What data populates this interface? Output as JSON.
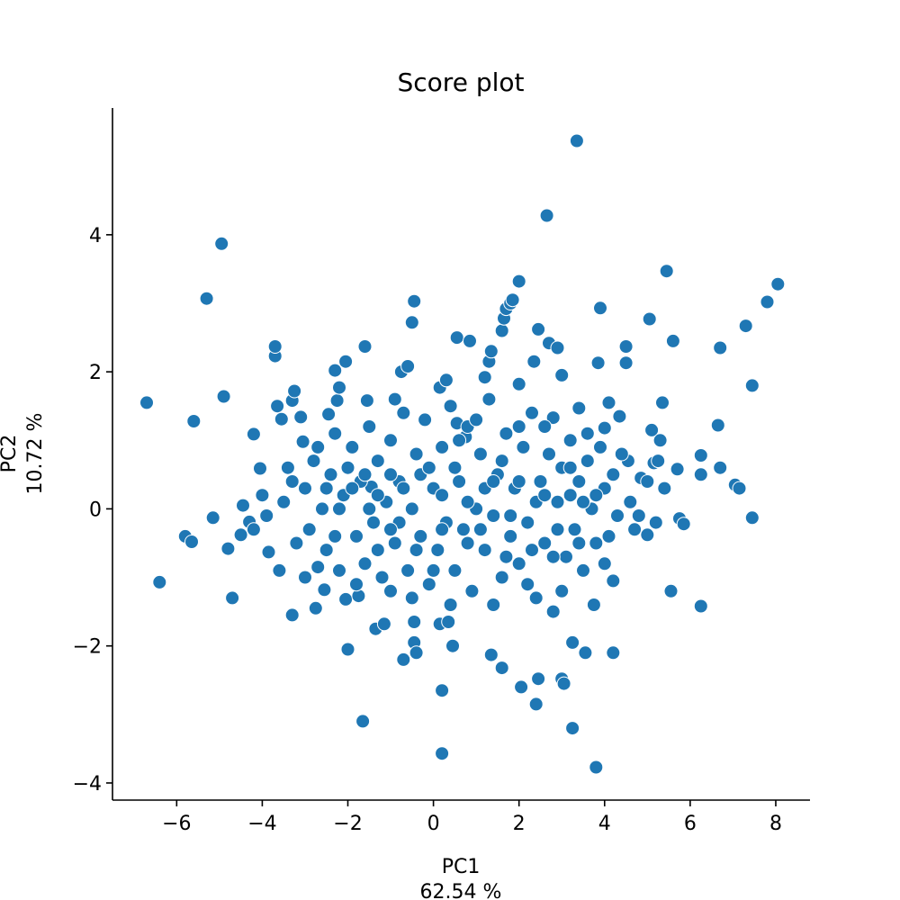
{
  "chart_data": {
    "type": "scatter",
    "title": "Score plot",
    "xlabel": "PC1",
    "xlabel_sub": "62.54 %",
    "ylabel": "PC2",
    "ylabel_sub": "10.72 %",
    "xlim": [
      -7.5,
      8.8
    ],
    "ylim": [
      -4.25,
      5.85
    ],
    "xticks": [
      -6,
      -4,
      -2,
      0,
      2,
      4,
      6,
      8
    ],
    "yticks": [
      -4,
      -2,
      0,
      2,
      4
    ],
    "grid": false,
    "marker_color": "#1f77b4",
    "marker_edge": "#ffffff",
    "points": [
      [
        -6.7,
        1.55
      ],
      [
        -6.4,
        -1.07
      ],
      [
        -5.8,
        -0.4
      ],
      [
        -5.65,
        -0.48
      ],
      [
        -5.6,
        1.28
      ],
      [
        -5.3,
        3.07
      ],
      [
        -5.15,
        -0.13
      ],
      [
        -4.95,
        3.87
      ],
      [
        -4.9,
        1.64
      ],
      [
        -4.8,
        -0.58
      ],
      [
        -4.7,
        -1.3
      ],
      [
        -4.5,
        -0.38
      ],
      [
        -4.45,
        0.05
      ],
      [
        -4.3,
        -0.19
      ],
      [
        -4.2,
        1.09
      ],
      [
        -4.2,
        -0.3
      ],
      [
        -4.05,
        0.59
      ],
      [
        -4.0,
        0.2
      ],
      [
        -3.85,
        -0.63
      ],
      [
        -3.7,
        2.23
      ],
      [
        -3.7,
        2.37
      ],
      [
        -3.65,
        1.5
      ],
      [
        -3.55,
        1.31
      ],
      [
        -3.3,
        1.58
      ],
      [
        -3.25,
        1.72
      ],
      [
        -3.3,
        -1.55
      ],
      [
        -3.05,
        0.98
      ],
      [
        -3.1,
        1.34
      ],
      [
        -2.75,
        -1.45
      ],
      [
        -2.7,
        -0.85
      ],
      [
        -2.55,
        -1.18
      ],
      [
        -2.45,
        1.38
      ],
      [
        -2.3,
        2.02
      ],
      [
        -2.25,
        1.58
      ],
      [
        -2.2,
        1.77
      ],
      [
        -2.05,
        2.15
      ],
      [
        -2.05,
        -1.32
      ],
      [
        -2.0,
        -2.05
      ],
      [
        -1.75,
        -1.27
      ],
      [
        -1.65,
        -3.1
      ],
      [
        -1.6,
        2.37
      ],
      [
        -1.55,
        1.58
      ],
      [
        -1.45,
        0.32
      ],
      [
        -1.35,
        -1.75
      ],
      [
        -1.15,
        -1.68
      ],
      [
        -1.0,
        -1.2
      ],
      [
        -0.9,
        1.6
      ],
      [
        -0.75,
        2.0
      ],
      [
        -0.7,
        -2.2
      ],
      [
        -0.6,
        2.08
      ],
      [
        -0.5,
        2.72
      ],
      [
        -0.45,
        3.03
      ],
      [
        -0.45,
        -1.65
      ],
      [
        -0.45,
        -1.95
      ],
      [
        -0.4,
        -2.1
      ],
      [
        0.15,
        1.77
      ],
      [
        0.15,
        -1.68
      ],
      [
        0.2,
        -2.65
      ],
      [
        0.2,
        -3.57
      ],
      [
        0.3,
        1.88
      ],
      [
        0.35,
        -1.65
      ],
      [
        0.45,
        -2.0
      ],
      [
        0.55,
        2.5
      ],
      [
        0.55,
        1.25
      ],
      [
        0.85,
        2.45
      ],
      [
        0.75,
        1.05
      ],
      [
        1.2,
        1.92
      ],
      [
        1.3,
        2.15
      ],
      [
        1.35,
        2.3
      ],
      [
        1.35,
        -2.13
      ],
      [
        1.6,
        -2.32
      ],
      [
        1.6,
        2.6
      ],
      [
        1.65,
        2.78
      ],
      [
        1.7,
        2.92
      ],
      [
        1.8,
        3.0
      ],
      [
        1.85,
        3.05
      ],
      [
        2.0,
        3.32
      ],
      [
        2.0,
        1.82
      ],
      [
        2.05,
        -2.6
      ],
      [
        2.35,
        2.15
      ],
      [
        2.4,
        -2.85
      ],
      [
        2.45,
        -2.48
      ],
      [
        2.45,
        2.62
      ],
      [
        2.65,
        4.28
      ],
      [
        2.7,
        2.42
      ],
      [
        2.8,
        1.33
      ],
      [
        2.9,
        2.35
      ],
      [
        3.0,
        1.95
      ],
      [
        3.0,
        -2.48
      ],
      [
        3.05,
        -2.55
      ],
      [
        3.25,
        -3.2
      ],
      [
        3.25,
        -1.95
      ],
      [
        3.35,
        5.37
      ],
      [
        3.4,
        1.47
      ],
      [
        3.55,
        -2.1
      ],
      [
        3.75,
        -1.4
      ],
      [
        3.8,
        -3.77
      ],
      [
        3.85,
        2.13
      ],
      [
        3.9,
        2.93
      ],
      [
        4.0,
        1.18
      ],
      [
        4.1,
        1.55
      ],
      [
        4.2,
        -1.05
      ],
      [
        4.2,
        -2.1
      ],
      [
        4.35,
        1.35
      ],
      [
        4.5,
        2.37
      ],
      [
        4.5,
        2.13
      ],
      [
        4.55,
        0.7
      ],
      [
        4.8,
        -0.1
      ],
      [
        4.85,
        0.45
      ],
      [
        5.0,
        -0.38
      ],
      [
        5.05,
        2.77
      ],
      [
        5.1,
        1.15
      ],
      [
        5.15,
        0.67
      ],
      [
        5.25,
        0.7
      ],
      [
        5.3,
        1.0
      ],
      [
        5.35,
        1.55
      ],
      [
        5.45,
        3.47
      ],
      [
        5.55,
        -1.2
      ],
      [
        5.6,
        2.45
      ],
      [
        5.7,
        0.58
      ],
      [
        5.75,
        -0.14
      ],
      [
        5.85,
        -0.22
      ],
      [
        6.25,
        0.5
      ],
      [
        6.25,
        0.78
      ],
      [
        6.25,
        -1.42
      ],
      [
        6.65,
        1.22
      ],
      [
        6.7,
        0.6
      ],
      [
        6.7,
        2.35
      ],
      [
        7.05,
        0.35
      ],
      [
        7.15,
        0.3
      ],
      [
        7.3,
        2.67
      ],
      [
        7.45,
        1.8
      ],
      [
        7.45,
        -0.13
      ],
      [
        7.8,
        3.02
      ],
      [
        8.05,
        3.28
      ],
      [
        -3.9,
        -0.1
      ],
      [
        -3.5,
        0.1
      ],
      [
        -3.4,
        0.6
      ],
      [
        -3.2,
        -0.5
      ],
      [
        -3.0,
        0.3
      ],
      [
        -2.9,
        -0.3
      ],
      [
        -2.8,
        0.7
      ],
      [
        -2.6,
        0.0
      ],
      [
        -2.5,
        -0.6
      ],
      [
        -2.4,
        0.5
      ],
      [
        -2.3,
        1.1
      ],
      [
        -2.2,
        -0.9
      ],
      [
        -2.1,
        0.2
      ],
      [
        -1.9,
        0.9
      ],
      [
        -1.8,
        -0.4
      ],
      [
        -1.7,
        0.4
      ],
      [
        -1.6,
        -0.8
      ],
      [
        -1.5,
        1.2
      ],
      [
        -1.4,
        -0.2
      ],
      [
        -1.3,
        0.7
      ],
      [
        -1.2,
        -1.0
      ],
      [
        -1.1,
        0.1
      ],
      [
        -1.0,
        1.0
      ],
      [
        -0.9,
        -0.5
      ],
      [
        -0.8,
        0.4
      ],
      [
        -0.7,
        1.4
      ],
      [
        -0.6,
        -0.9
      ],
      [
        -0.5,
        0.0
      ],
      [
        -0.4,
        0.8
      ],
      [
        -0.3,
        -0.4
      ],
      [
        -0.2,
        1.3
      ],
      [
        -0.1,
        -1.1
      ],
      [
        0.0,
        0.3
      ],
      [
        0.1,
        -0.6
      ],
      [
        0.2,
        0.9
      ],
      [
        0.3,
        -0.2
      ],
      [
        0.4,
        1.5
      ],
      [
        0.5,
        -0.9
      ],
      [
        0.6,
        0.4
      ],
      [
        0.7,
        -0.3
      ],
      [
        0.8,
        1.2
      ],
      [
        0.9,
        -1.2
      ],
      [
        1.0,
        0.0
      ],
      [
        1.1,
        0.8
      ],
      [
        1.2,
        -0.6
      ],
      [
        1.3,
        1.6
      ],
      [
        1.4,
        -0.1
      ],
      [
        1.5,
        0.5
      ],
      [
        1.6,
        -1.0
      ],
      [
        1.7,
        1.1
      ],
      [
        1.8,
        -0.4
      ],
      [
        1.9,
        0.3
      ],
      [
        2.0,
        -0.8
      ],
      [
        2.1,
        0.9
      ],
      [
        2.2,
        -0.2
      ],
      [
        2.3,
        1.4
      ],
      [
        2.4,
        -1.3
      ],
      [
        2.5,
        0.4
      ],
      [
        2.6,
        -0.5
      ],
      [
        2.7,
        0.8
      ],
      [
        2.8,
        -1.5
      ],
      [
        2.9,
        0.1
      ],
      [
        3.0,
        0.6
      ],
      [
        3.1,
        -0.7
      ],
      [
        3.2,
        1.0
      ],
      [
        3.3,
        -0.3
      ],
      [
        3.4,
        0.4
      ],
      [
        3.5,
        -0.9
      ],
      [
        3.6,
        0.7
      ],
      [
        3.7,
        0.0
      ],
      [
        3.8,
        -0.5
      ],
      [
        3.9,
        0.9
      ],
      [
        4.0,
        0.3
      ],
      [
        4.1,
        -0.4
      ],
      [
        4.2,
        0.5
      ],
      [
        4.3,
        -0.1
      ],
      [
        4.4,
        0.8
      ],
      [
        4.6,
        0.1
      ],
      [
        4.7,
        -0.3
      ],
      [
        5.0,
        0.4
      ],
      [
        5.2,
        -0.2
      ],
      [
        5.4,
        0.3
      ],
      [
        -3.6,
        -0.9
      ],
      [
        -3.3,
        0.4
      ],
      [
        -3.0,
        -1.0
      ],
      [
        -2.7,
        0.9
      ],
      [
        -2.5,
        0.3
      ],
      [
        -2.3,
        -0.4
      ],
      [
        -2.0,
        0.6
      ],
      [
        -1.8,
        -1.1
      ],
      [
        -1.5,
        0.0
      ],
      [
        -1.3,
        -0.6
      ],
      [
        -1.0,
        0.5
      ],
      [
        -0.8,
        -0.2
      ],
      [
        -0.5,
        -1.3
      ],
      [
        -0.3,
        0.5
      ],
      [
        0.0,
        -0.9
      ],
      [
        0.2,
        0.2
      ],
      [
        0.4,
        -1.4
      ],
      [
        0.6,
        1.0
      ],
      [
        0.8,
        -0.5
      ],
      [
        1.0,
        1.3
      ],
      [
        1.2,
        0.3
      ],
      [
        1.4,
        -1.4
      ],
      [
        1.6,
        0.7
      ],
      [
        1.8,
        -0.1
      ],
      [
        2.0,
        1.2
      ],
      [
        2.2,
        -1.1
      ],
      [
        2.4,
        0.1
      ],
      [
        2.6,
        1.2
      ],
      [
        2.8,
        -0.7
      ],
      [
        3.0,
        -1.2
      ],
      [
        3.2,
        0.2
      ],
      [
        3.4,
        -0.5
      ],
      [
        3.6,
        1.1
      ],
      [
        3.8,
        0.2
      ],
      [
        4.0,
        -0.8
      ],
      [
        -2.2,
        0.0
      ],
      [
        -1.9,
        0.3
      ],
      [
        -1.6,
        0.5
      ],
      [
        -1.3,
        0.2
      ],
      [
        -1.0,
        -0.3
      ],
      [
        -0.7,
        0.3
      ],
      [
        -0.4,
        -0.6
      ],
      [
        -0.1,
        0.6
      ],
      [
        0.2,
        -0.3
      ],
      [
        0.5,
        0.6
      ],
      [
        0.8,
        0.1
      ],
      [
        1.1,
        -0.3
      ],
      [
        1.4,
        0.4
      ],
      [
        1.7,
        -0.7
      ],
      [
        2.0,
        0.4
      ],
      [
        2.3,
        -0.6
      ],
      [
        2.6,
        0.2
      ],
      [
        2.9,
        -0.3
      ],
      [
        3.2,
        0.6
      ],
      [
        3.5,
        0.1
      ]
    ]
  }
}
